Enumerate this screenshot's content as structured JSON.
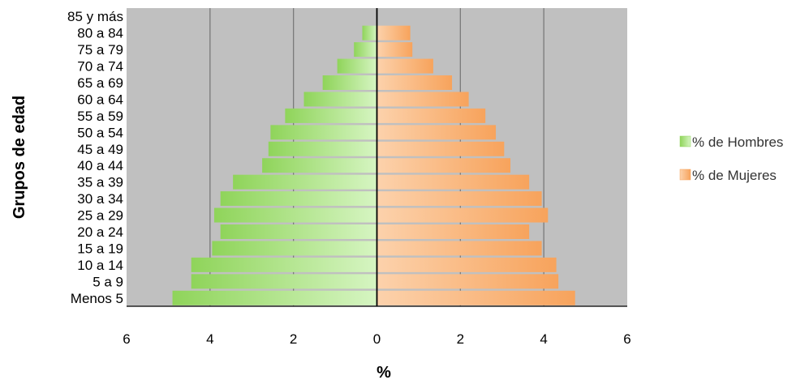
{
  "chart_data": {
    "type": "bar",
    "orientation": "horizontal",
    "layout": "population-pyramid",
    "categories": [
      "Menos 5",
      "5 a 9",
      "10 a 14",
      "15 a 19",
      "20 a 24",
      "25 a 29",
      "30 a 34",
      "35 a 39",
      "40 a 44",
      "45 a 49",
      "50 a 54",
      "55 a 59",
      "60 a 64",
      "65 a 69",
      "70 a 74",
      "75 a 79",
      "80 a 84",
      "85 y más"
    ],
    "series": [
      {
        "name": "% de Hombres",
        "side": "left",
        "color": "#8fd45a",
        "values": [
          4.9,
          4.45,
          4.45,
          3.95,
          3.75,
          3.9,
          3.75,
          3.45,
          2.75,
          2.6,
          2.55,
          2.2,
          1.75,
          1.3,
          0.95,
          0.55,
          0.35,
          0
        ]
      },
      {
        "name": "% de Mujeres",
        "side": "right",
        "color": "#f7a35c",
        "values": [
          4.75,
          4.35,
          4.3,
          3.95,
          3.65,
          4.1,
          3.95,
          3.65,
          3.2,
          3.05,
          2.85,
          2.6,
          2.2,
          1.8,
          1.35,
          0.85,
          0.8,
          0
        ]
      }
    ],
    "xlabel": "%",
    "ylabel": "Grupos de edad",
    "xlim": [
      -6,
      6
    ],
    "xticks": [
      -6,
      -4,
      -2,
      0,
      2,
      4,
      6
    ],
    "xtick_labels": [
      "6",
      "4",
      "2",
      "0",
      "2",
      "4",
      "6"
    ],
    "grid": true,
    "legend": "right"
  }
}
